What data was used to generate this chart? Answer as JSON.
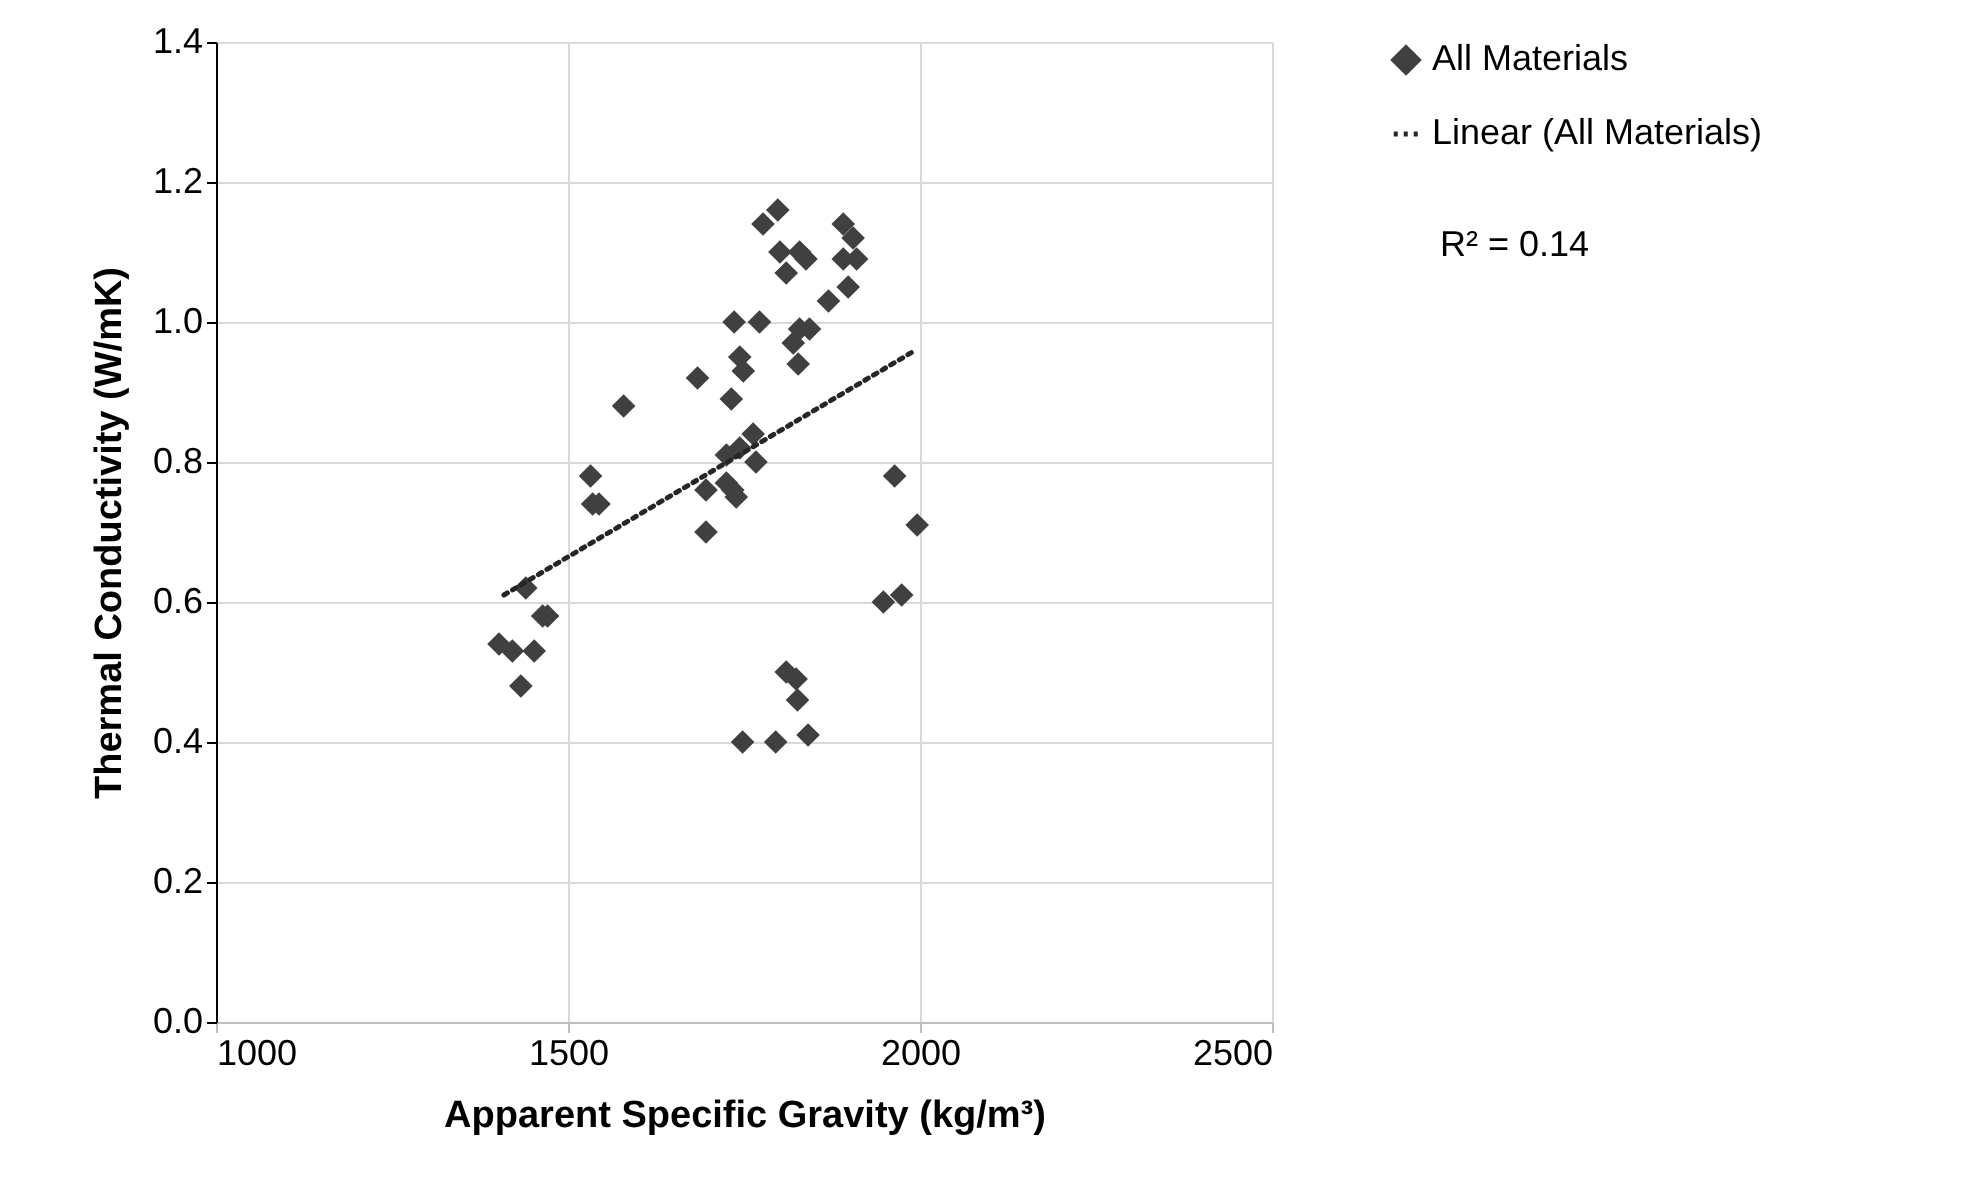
{
  "chart_data": {
    "type": "scatter",
    "xlabel": "Apparent Specific Gravity (kg/m³)",
    "ylabel": "Thermal Conductivity (W/mK)",
    "xlim": [
      1000,
      2500
    ],
    "xticks": [
      1000,
      1500,
      2000,
      2500
    ],
    "ylim": [
      0,
      1.4
    ],
    "yticks": [
      {
        "value": 0,
        "label": "0.0"
      },
      0.2,
      0.4,
      0.6,
      0.8,
      {
        "value": 1,
        "label": "1.0"
      },
      1.2,
      1.4
    ],
    "grid": true,
    "legend": "right",
    "annotations": [
      "R² = 0.14"
    ],
    "series": [
      {
        "name": "All Materials",
        "color": "#404040",
        "marker": "diamond",
        "x": [
          1798,
          1777,
          1801,
          1829,
          1838,
          1810,
          1891,
          1905,
          1891,
          1910,
          1898,
          1870,
          1772,
          1736,
          1829,
          1843,
          1820,
          1827,
          1744,
          1749,
          1684,
          1732,
          1579,
          1763,
          1744,
          1725,
          1767,
          1532,
          1535,
          1544,
          1696,
          1725,
          1734,
          1739,
          1696,
          1964,
          1996,
          1440,
          1471,
          1948,
          1974,
          1464,
          1402,
          1421,
          1452,
          1433,
          1810,
          1824,
          1826,
          1748,
          1795,
          1841
        ],
        "values": [
          1.16,
          1.14,
          1.1,
          1.1,
          1.09,
          1.07,
          1.14,
          1.12,
          1.09,
          1.09,
          1.05,
          1.03,
          1.0,
          1.0,
          0.99,
          0.99,
          0.97,
          0.94,
          0.95,
          0.93,
          0.92,
          0.89,
          0.88,
          0.84,
          0.82,
          0.81,
          0.8,
          0.78,
          0.74,
          0.74,
          0.76,
          0.77,
          0.76,
          0.75,
          0.7,
          0.78,
          0.71,
          0.62,
          0.58,
          0.6,
          0.61,
          0.58,
          0.54,
          0.53,
          0.53,
          0.48,
          0.5,
          0.49,
          0.46,
          0.4,
          0.4,
          0.41
        ]
      },
      {
        "name": "Linear (All Materials)",
        "color": "#262626",
        "type": "line",
        "line_style": "dotted",
        "x": [
          1409,
          1994
        ],
        "values": [
          0.61,
          0.96
        ]
      }
    ]
  }
}
